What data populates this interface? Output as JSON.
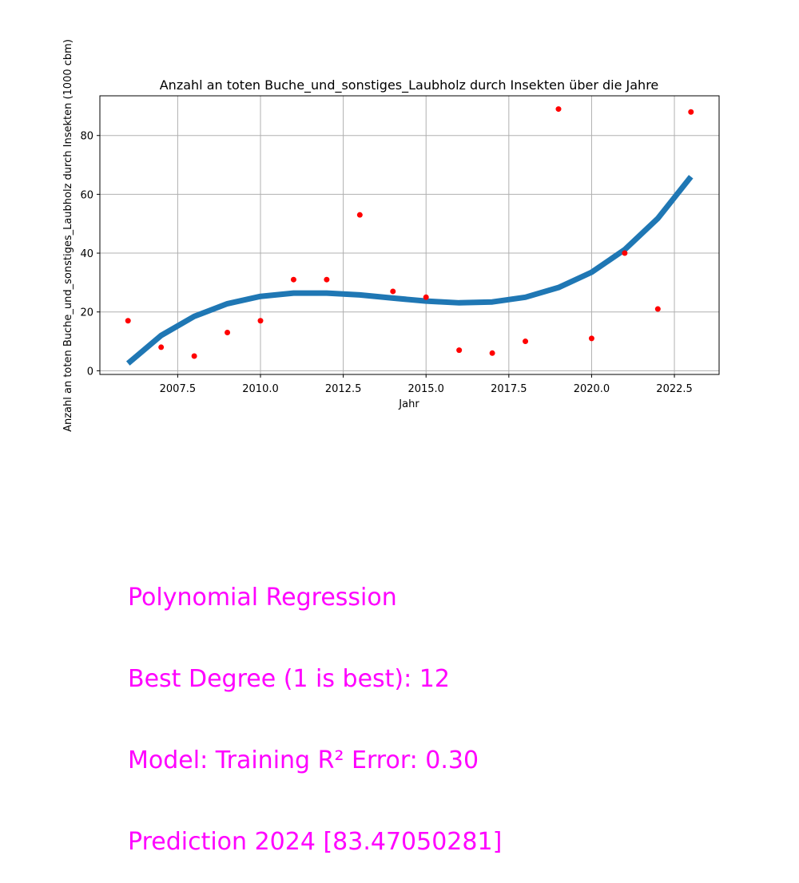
{
  "chart_data": {
    "type": "scatter",
    "title": "Anzahl an toten Buche_und_sonstiges_Laubholz durch Insekten über die Jahre",
    "xlabel": "Jahr",
    "ylabel": "Anzahl an toten Buche_und_sonstiges_Laubholz durch Insekten (1000 cbm)",
    "xlim": [
      2005.15,
      2023.85
    ],
    "ylim": [
      -1.25,
      93.5
    ],
    "xticks": [
      2007.5,
      2010.0,
      2012.5,
      2015.0,
      2017.5,
      2020.0,
      2022.5
    ],
    "xtick_labels": [
      "2007.5",
      "2010.0",
      "2012.5",
      "2015.0",
      "2017.5",
      "2020.0",
      "2022.5"
    ],
    "yticks": [
      0,
      20,
      40,
      60,
      80
    ],
    "ytick_labels": [
      "0",
      "20",
      "40",
      "60",
      "80"
    ],
    "grid": true,
    "series": [
      {
        "kind": "scatter",
        "color": "#ff0000",
        "x": [
          2006,
          2007,
          2008,
          2009,
          2010,
          2011,
          2012,
          2013,
          2014,
          2015,
          2016,
          2017,
          2018,
          2019,
          2020,
          2021,
          2022,
          2023
        ],
        "y": [
          17,
          8,
          5,
          13,
          17,
          31,
          31,
          53,
          27,
          25,
          7,
          6,
          10,
          89,
          11,
          40,
          21,
          88
        ]
      },
      {
        "kind": "line",
        "color": "#1f77b4",
        "x": [
          2006,
          2007,
          2008,
          2009,
          2010,
          2011,
          2012,
          2013,
          2014,
          2015,
          2016,
          2017,
          2018,
          2019,
          2020,
          2021,
          2022,
          2023
        ],
        "y": [
          2.5,
          12,
          18.5,
          22.8,
          25.3,
          26.4,
          26.4,
          25.8,
          24.7,
          23.7,
          23.1,
          23.4,
          25.0,
          28.3,
          33.5,
          41.2,
          51.8,
          66.0
        ]
      }
    ]
  },
  "info": {
    "color": "#ff00ff",
    "lines": [
      "Polynomial Regression",
      "Best Degree (1 is best): 12",
      "Model: Training R² Error: 0.30",
      "Prediction 2024 [83.47050281]"
    ]
  }
}
